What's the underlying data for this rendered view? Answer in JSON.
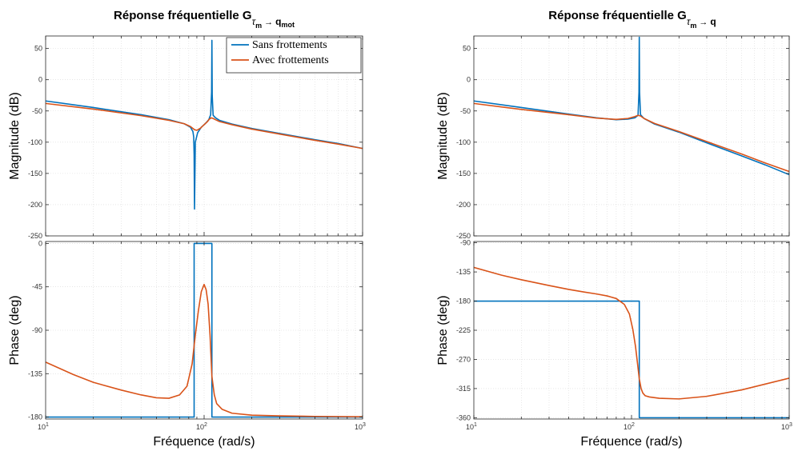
{
  "chart_data": [
    {
      "type": "line",
      "title_main": "Réponse fréquentielle G",
      "title_sub_tau": "τ",
      "title_sub_m": "m",
      "title_sub_arrow": "→",
      "title_sub_q": "q",
      "title_sub_suffix": "mot",
      "xlabel": "Fréquence  (rad/s)",
      "xscale": "log",
      "xlim": [
        10,
        1000
      ],
      "xticks": [
        {
          "value": 10,
          "base": "10",
          "exp": "1"
        },
        {
          "value": 100,
          "base": "10",
          "exp": "2"
        },
        {
          "value": 1000,
          "base": "10",
          "exp": "3"
        }
      ],
      "legend_position": "top-right",
      "colors": {
        "sans": "#0072BD",
        "avec": "#D95319"
      },
      "magnitude": {
        "ylabel": "Magnitude (dB)",
        "ylim": [
          -250,
          70
        ],
        "yticks": [
          50,
          0,
          -50,
          -100,
          -150,
          -200,
          -250
        ],
        "grid": true,
        "series": [
          {
            "name": "Sans frottements",
            "key": "sans",
            "x": [
              10,
              20,
              40,
              60,
              75,
              82,
              85,
              86,
              86.5,
              87,
              88,
              91,
              96,
              102,
              107,
              110,
              111.5,
              112,
              112.5,
              114,
              118,
              125,
              150,
              200,
              300,
              500,
              700,
              1000
            ],
            "y": [
              -34,
              -44.5,
              -56,
              -64,
              -70.5,
              -76,
              -83,
              -92,
              -120,
              -207,
              -100,
              -85,
              -76,
              -70,
              -64,
              -56,
              -20,
              63,
              -25,
              -57,
              -61,
              -65,
              -71,
              -78,
              -86,
              -96,
              -102,
              -110
            ]
          },
          {
            "name": "Avec frottements",
            "key": "avec",
            "x": [
              10,
              20,
              40,
              60,
              75,
              82,
              85,
              87,
              90,
              95,
              100,
              105,
              108,
              111,
              114,
              118,
              125,
              150,
              200,
              300,
              500,
              700,
              1000
            ],
            "y": [
              -38,
              -47,
              -57.5,
              -65,
              -70.5,
              -75,
              -78,
              -80,
              -81,
              -77.5,
              -72,
              -67,
              -63,
              -61,
              -62,
              -64,
              -67,
              -72,
              -79,
              -87,
              -97,
              -103,
              -110
            ]
          }
        ]
      },
      "phase": {
        "ylabel": "Phase (deg)",
        "ylim": [
          -182,
          2
        ],
        "yticks": [
          0,
          -45,
          -90,
          -135,
          -180
        ],
        "grid": true,
        "series": [
          {
            "name": "Sans frottements",
            "key": "sans",
            "x": [
              10,
              86.5,
              86.5,
              112,
              112,
              1000
            ],
            "y": [
              -180,
              -180,
              0,
              0,
              -180,
              -180
            ]
          },
          {
            "name": "Avec frottements",
            "key": "avec",
            "x": [
              10,
              15,
              20,
              30,
              40,
              50,
              60,
              70,
              78,
              84,
              88,
              92,
              96,
              100,
              103,
              106,
              109,
              112,
              116,
              120,
              130,
              150,
              200,
              300,
              500,
              1000
            ],
            "y": [
              -123,
              -136,
              -144,
              -152,
              -157,
              -160,
              -160.5,
              -157,
              -148,
              -125,
              -95,
              -70,
              -50,
              -42.5,
              -48,
              -63,
              -95,
              -138,
              -157,
              -166,
              -172,
              -176,
              -178,
              -178.7,
              -179.3,
              -179.7
            ]
          }
        ]
      }
    },
    {
      "type": "line",
      "title_main": "Réponse fréquentielle G",
      "title_sub_tau": "τ",
      "title_sub_m": "m",
      "title_sub_arrow": "→",
      "title_sub_q": "q",
      "title_sub_suffix": "",
      "xlabel": "Fréquence  (rad/s)",
      "xscale": "log",
      "xlim": [
        10,
        1000
      ],
      "xticks": [
        {
          "value": 10,
          "base": "10",
          "exp": "1"
        },
        {
          "value": 100,
          "base": "10",
          "exp": "2"
        },
        {
          "value": 1000,
          "base": "10",
          "exp": "3"
        }
      ],
      "colors": {
        "sans": "#0072BD",
        "avec": "#D95319"
      },
      "magnitude": {
        "ylabel": "Magnitude (dB)",
        "ylim": [
          -250,
          70
        ],
        "yticks": [
          50,
          0,
          -50,
          -100,
          -150,
          -200,
          -250
        ],
        "grid": true,
        "series": [
          {
            "name": "Sans frottements",
            "key": "sans",
            "x": [
              10,
              20,
              40,
              60,
              80,
              95,
              105,
              110,
              111.5,
              112,
              112.5,
              114,
              120,
              140,
              200,
              300,
              500,
              700,
              1000
            ],
            "y": [
              -34,
              -44.5,
              -55,
              -61,
              -64,
              -63,
              -61,
              -57,
              -20,
              68,
              -20,
              -56,
              -62,
              -71,
              -84,
              -101,
              -122,
              -136,
              -152
            ]
          },
          {
            "name": "Avec frottements",
            "key": "avec",
            "x": [
              10,
              20,
              40,
              60,
              80,
              95,
              105,
              110,
              114,
              120,
              140,
              200,
              300,
              500,
              700,
              1000
            ],
            "y": [
              -38,
              -47.5,
              -56,
              -61.5,
              -63.5,
              -62,
              -59,
              -57,
              -58,
              -62,
              -70,
              -83,
              -99,
              -119,
              -133,
              -147
            ]
          }
        ]
      },
      "phase": {
        "ylabel": "Phase (deg)",
        "ylim": [
          -362,
          -88
        ],
        "yticks": [
          -90,
          -135,
          -180,
          -225,
          -270,
          -315,
          -360
        ],
        "grid": true,
        "series": [
          {
            "name": "Sans frottements",
            "key": "sans",
            "x": [
              10,
              112,
              112,
              1000
            ],
            "y": [
              -180,
              -180,
              -360,
              -360
            ]
          },
          {
            "name": "Avec frottements",
            "key": "avec",
            "x": [
              10,
              15,
              20,
              30,
              40,
              50,
              60,
              70,
              80,
              90,
              97,
              102,
              106,
              109,
              112,
              115,
              118,
              122,
              130,
              150,
              200,
              300,
              500,
              1000
            ],
            "y": [
              -128,
              -140,
              -147,
              -156,
              -162,
              -166,
              -169,
              -172,
              -176,
              -185,
              -200,
              -224,
              -250,
              -275,
              -300,
              -315,
              -322,
              -326,
              -328,
              -330,
              -331,
              -327,
              -317,
              -299
            ]
          }
        ]
      }
    }
  ]
}
